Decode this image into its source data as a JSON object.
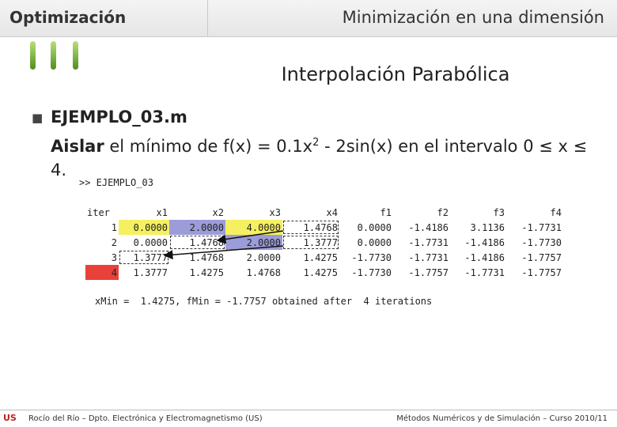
{
  "header": {
    "left": "Optimización",
    "right": "Minimización en una dimensión"
  },
  "title": "Interpolación Parabólica",
  "bullet": {
    "heading": "EJEMPLO_03.m",
    "text": {
      "bold": "Aislar",
      "before_sup": " el mínimo de f(x) = 0.1x",
      "sup": "2",
      "after_sup": " - 2sin(x) en el intervalo 0 ≤ x ≤ 4."
    }
  },
  "console": {
    "prompt": ">> EJEMPLO_03",
    "table": {
      "header": [
        "iter",
        "x1",
        "x2",
        "x3",
        "x4",
        "f1",
        "f2",
        "f3",
        "f4"
      ],
      "rows": [
        [
          "1",
          "0.0000",
          "2.0000",
          "4.0000",
          "1.4768",
          "0.0000",
          "-1.4186",
          "3.1136",
          "-1.7731"
        ],
        [
          "2",
          "0.0000",
          "1.4768",
          "2.0000",
          "1.3777",
          "0.0000",
          "-1.7731",
          "-1.4186",
          "-1.7730"
        ],
        [
          "3",
          "1.3777",
          "1.4768",
          "2.0000",
          "1.4275",
          "-1.7730",
          "-1.7731",
          "-1.4186",
          "-1.7757"
        ],
        [
          "4",
          "1.3777",
          "1.4275",
          "1.4768",
          "1.4275",
          "-1.7730",
          "-1.7757",
          "-1.7731",
          "-1.7757"
        ]
      ]
    },
    "result": "xMin =  1.4275, fMin = -1.7757 obtained after  4 iterations"
  },
  "footer": {
    "left": "Rocío del Río – Dpto. Electrónica y Electromagnetismo (US)",
    "right": "Métodos Numéricos y de Simulación – Curso 2010/11"
  }
}
